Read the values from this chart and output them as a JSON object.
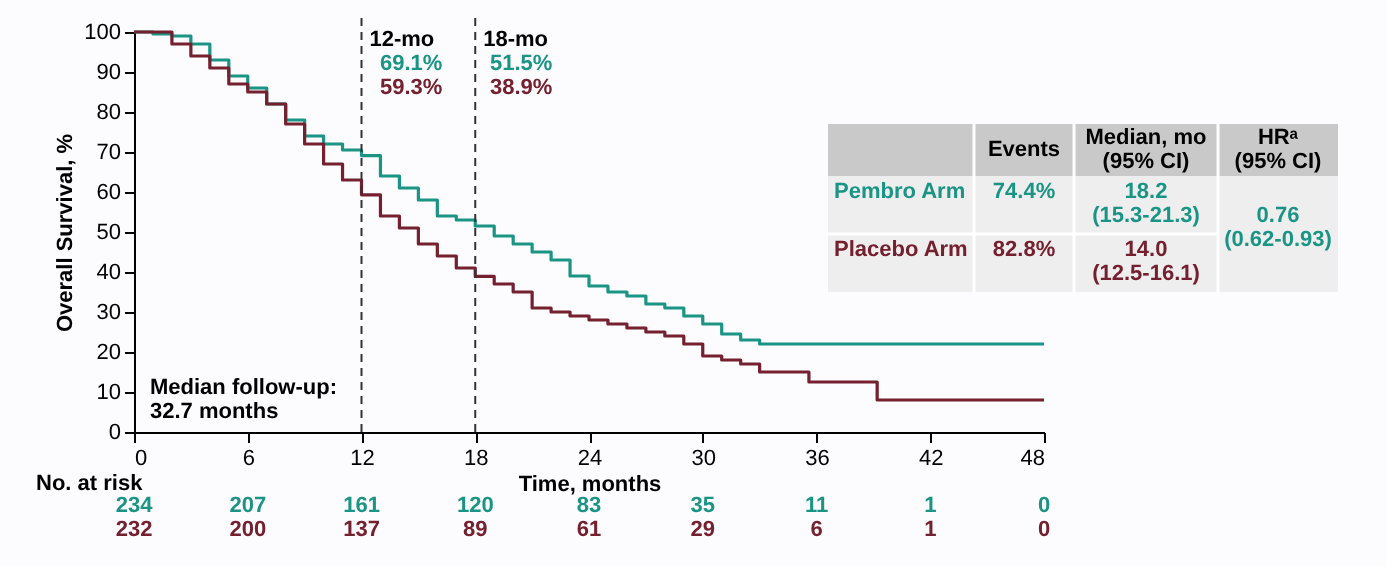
{
  "chart_data": {
    "type": "step",
    "ylabel": "Overall Survival, %",
    "xlabel": "Time, months",
    "xlim": [
      0,
      48
    ],
    "xticks": [
      0,
      6,
      12,
      18,
      24,
      30,
      36,
      42,
      48
    ],
    "ylim": [
      0,
      100
    ],
    "yticks": [
      0,
      10,
      20,
      30,
      40,
      50,
      60,
      70,
      80,
      90,
      100
    ],
    "grid": false,
    "marker": "none",
    "line_style": "solid",
    "series": [
      {
        "name": "Pembro Arm",
        "color": "#1a9484",
        "x": [
          0,
          1,
          2,
          3,
          4,
          5,
          6,
          7,
          8,
          9,
          10,
          11,
          12,
          13,
          14,
          15,
          16,
          17,
          18,
          19,
          20,
          21,
          22,
          23,
          24,
          25,
          26,
          27,
          28,
          29,
          30,
          31,
          32,
          33,
          48
        ],
        "values": [
          100,
          99.5,
          99,
          97,
          93,
          89,
          86,
          82,
          78,
          74,
          72,
          70.5,
          69.1,
          64,
          61,
          58,
          54,
          53,
          51.5,
          49,
          47,
          45,
          43,
          39,
          36.5,
          35,
          34,
          32,
          31,
          29,
          27,
          24.5,
          23,
          22,
          22
        ]
      },
      {
        "name": "Placebo Arm",
        "color": "#74202e",
        "x": [
          0,
          2,
          3,
          4,
          5,
          6,
          7,
          8,
          9,
          10,
          11,
          12,
          13,
          14,
          15,
          16,
          17,
          18,
          19,
          20,
          21,
          22,
          23,
          24,
          25,
          26,
          27,
          28,
          29,
          30,
          31,
          32,
          33,
          35.6,
          39.2,
          48
        ],
        "values": [
          100,
          97,
          94,
          91,
          87,
          85,
          82,
          77,
          72,
          67,
          63,
          59.3,
          54,
          51,
          47,
          44,
          41,
          38.9,
          37,
          35,
          31,
          30,
          29,
          28,
          27,
          26,
          25,
          24,
          22,
          19,
          18,
          17,
          15,
          12.5,
          8,
          8
        ]
      }
    ],
    "ref_lines": [
      {
        "axis": "x",
        "value": 12,
        "label": "12-mo",
        "line_style": "dashed",
        "color": "#333333"
      },
      {
        "axis": "x",
        "value": 18,
        "label": "18-mo",
        "line_style": "dashed",
        "color": "#333333"
      }
    ],
    "annotations": [
      "69.1%",
      "59.3%",
      "51.5%",
      "38.9%",
      "Median follow-up:\n32.7 months",
      "No. at risk",
      "Events",
      "Median, mo\n(95% CI)",
      "HRᵃ\n(95% CI)",
      "74.4%",
      "18.2\n(15.3-21.3)",
      "82.8%",
      "14.0\n(12.5-16.1)",
      "0.76\n(0.62-0.93)",
      "234",
      "207",
      "161",
      "120",
      "83",
      "35",
      "11",
      "1",
      "0",
      "232",
      "200",
      "137",
      "89",
      "61",
      "29",
      "6",
      "1",
      "0"
    ]
  }
}
